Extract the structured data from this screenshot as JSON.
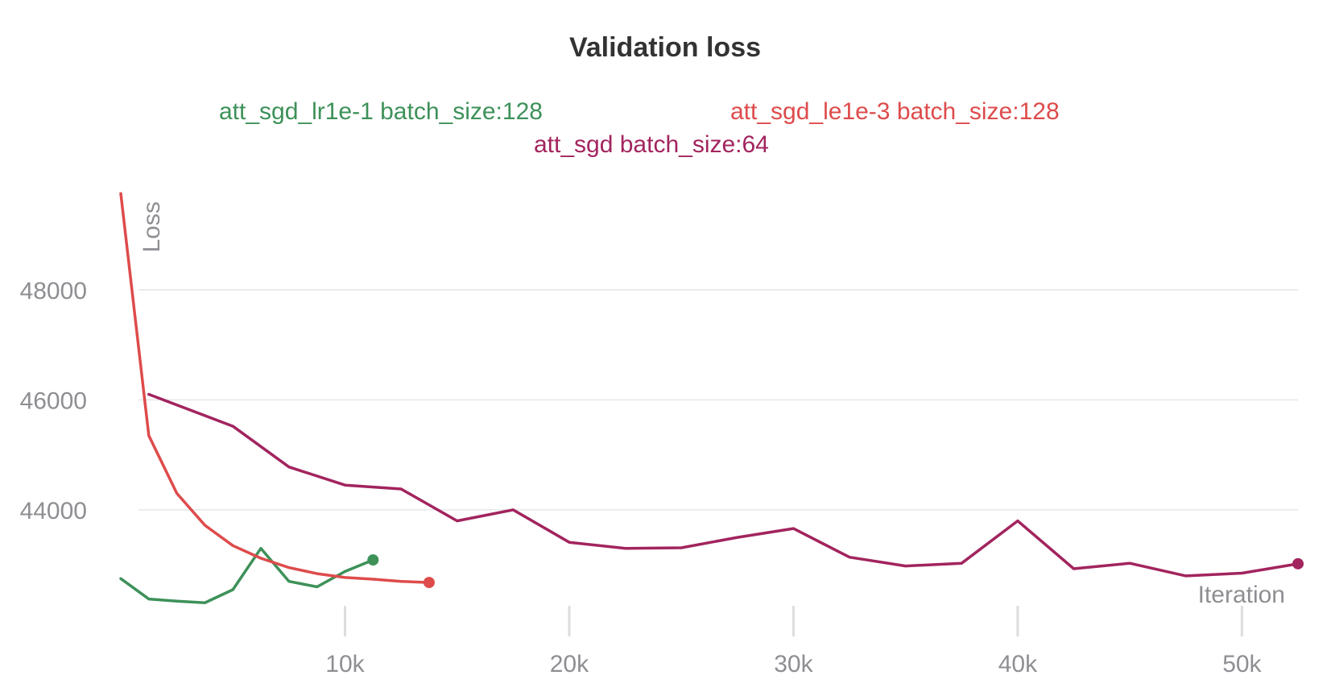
{
  "chart_data": {
    "type": "line",
    "title": "Validation loss",
    "xlabel": "Iteration",
    "ylabel": "Loss",
    "xlim": [
      0,
      52500
    ],
    "ylim": [
      41700,
      49900
    ],
    "x_ticks": [
      10000,
      20000,
      30000,
      40000,
      50000
    ],
    "x_tick_labels": [
      "10k",
      "20k",
      "30k",
      "40k",
      "50k"
    ],
    "y_ticks": [
      44000,
      46000,
      48000
    ],
    "y_tick_labels": [
      "44000",
      "46000",
      "48000"
    ],
    "grid": true,
    "legend_placement": "top",
    "series": [
      {
        "name": "att_sgd_lr1e-1 batch_size:128",
        "color": "#3d9159",
        "x": [
          0,
          1250,
          2500,
          3750,
          5000,
          6250,
          7500,
          8750,
          10000,
          11250
        ],
        "y": [
          42750,
          42380,
          42340,
          42310,
          42550,
          43300,
          42700,
          42600,
          42880,
          43090
        ]
      },
      {
        "name": "att_sgd_le1e-3 batch_size:128",
        "color": "#de4b4b",
        "x": [
          0,
          1250,
          2500,
          3750,
          5000,
          6250,
          7500,
          8750,
          10000,
          11250,
          12500,
          13750
        ],
        "y": [
          49750,
          45350,
          44300,
          43720,
          43350,
          43120,
          42950,
          42840,
          42770,
          42740,
          42700,
          42680
        ]
      },
      {
        "name": "att_sgd batch_size:64",
        "color": "#a2245e",
        "x": [
          1250,
          5000,
          7500,
          10000,
          12500,
          15000,
          17500,
          20000,
          22500,
          25000,
          27500,
          30000,
          32500,
          35000,
          37500,
          40000,
          42500,
          45000,
          47500,
          50000,
          52500
        ],
        "y": [
          46100,
          45520,
          44780,
          44450,
          44380,
          43800,
          44000,
          43410,
          43300,
          43310,
          43500,
          43660,
          43140,
          42980,
          43030,
          43800,
          42930,
          43030,
          42800,
          42850,
          43020
        ]
      }
    ]
  }
}
